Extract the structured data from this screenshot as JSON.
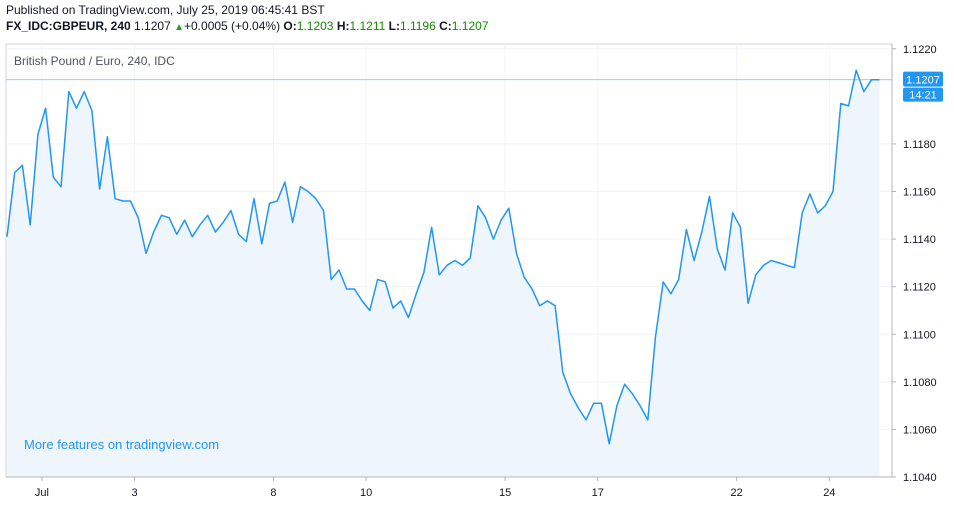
{
  "header": {
    "published": "Published on TradingView.com, July 25, 2019 06:45:41 BST",
    "symbol": "FX_IDC:GBPEUR, 240",
    "last": "1.1207",
    "change": "+0.0005 (+0.04%)",
    "open_label": "O:",
    "open": "1.1203",
    "high_label": "H:",
    "high": "1.1211",
    "low_label": "L:",
    "low": "1.1196",
    "close_label": "C:",
    "close": "1.1207"
  },
  "chart_data": {
    "type": "area",
    "title": "British Pound / Euro, 240, IDC",
    "promo": "More features on tradingview.com",
    "y_ticks": [
      "1.1220",
      "1.1180",
      "1.1160",
      "1.1140",
      "1.1120",
      "1.1100",
      "1.1080",
      "1.1060",
      "1.1040"
    ],
    "x_ticks": [
      "Jul",
      "3",
      "8",
      "10",
      "15",
      "17",
      "22",
      "24"
    ],
    "ylim": [
      1.104,
      1.1222
    ],
    "last_price_label": "1.1207",
    "countdown_label": "14:21",
    "colors": {
      "line": "#2196f3",
      "fill": "#eef5fd",
      "grid": "#f0f3fa",
      "axis": "#d1d4dc",
      "price_tag": "#2196f3"
    },
    "values": [
      1.1141,
      1.1168,
      1.1171,
      1.1146,
      1.1184,
      1.1195,
      1.1166,
      1.1162,
      1.1202,
      1.1195,
      1.1202,
      1.1194,
      1.1161,
      1.1183,
      1.1157,
      1.1156,
      1.1156,
      1.1149,
      1.1134,
      1.1143,
      1.115,
      1.1149,
      1.1142,
      1.1148,
      1.1141,
      1.1146,
      1.115,
      1.1143,
      1.1147,
      1.1152,
      1.1142,
      1.1139,
      1.1157,
      1.1138,
      1.1155,
      1.1156,
      1.1164,
      1.1147,
      1.1162,
      1.116,
      1.1157,
      1.1152,
      1.1123,
      1.1127,
      1.1119,
      1.1119,
      1.1114,
      1.111,
      1.1123,
      1.1122,
      1.1111,
      1.1114,
      1.1107,
      1.1117,
      1.1126,
      1.1145,
      1.1125,
      1.1129,
      1.1131,
      1.1129,
      1.1132,
      1.1154,
      1.1149,
      1.114,
      1.1148,
      1.1153,
      1.1134,
      1.1124,
      1.1119,
      1.1112,
      1.1114,
      1.1112,
      1.1084,
      1.1075,
      1.1069,
      1.1064,
      1.1071,
      1.1071,
      1.1054,
      1.107,
      1.1079,
      1.1075,
      1.107,
      1.1064,
      1.1099,
      1.1122,
      1.1117,
      1.1123,
      1.1144,
      1.1131,
      1.1143,
      1.1158,
      1.1136,
      1.1127,
      1.1151,
      1.1145,
      1.1113,
      1.1125,
      1.1129,
      1.1131,
      1.113,
      1.1129,
      1.1128,
      1.1151,
      1.1159,
      1.1151,
      1.1154,
      1.116,
      1.1197,
      1.1196,
      1.1211,
      1.1202,
      1.1207,
      1.1207
    ]
  }
}
